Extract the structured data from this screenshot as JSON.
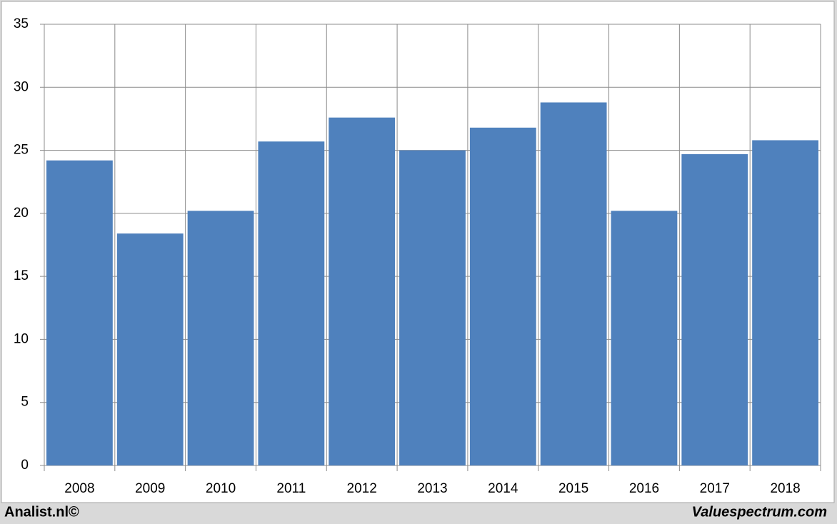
{
  "chart_data": {
    "type": "bar",
    "categories": [
      "2008",
      "2009",
      "2010",
      "2011",
      "2012",
      "2013",
      "2014",
      "2015",
      "2016",
      "2017",
      "2018"
    ],
    "values": [
      24.2,
      18.4,
      20.2,
      25.7,
      27.6,
      25.0,
      26.8,
      28.8,
      20.2,
      24.7,
      25.8
    ],
    "color": "#4f81bd",
    "ylim": [
      0,
      35
    ],
    "yticks": [
      0,
      5,
      10,
      15,
      20,
      25,
      30,
      35
    ],
    "grid": true,
    "footer_left": "Analist.nl©",
    "footer_right": "Valuespectrum.com"
  }
}
